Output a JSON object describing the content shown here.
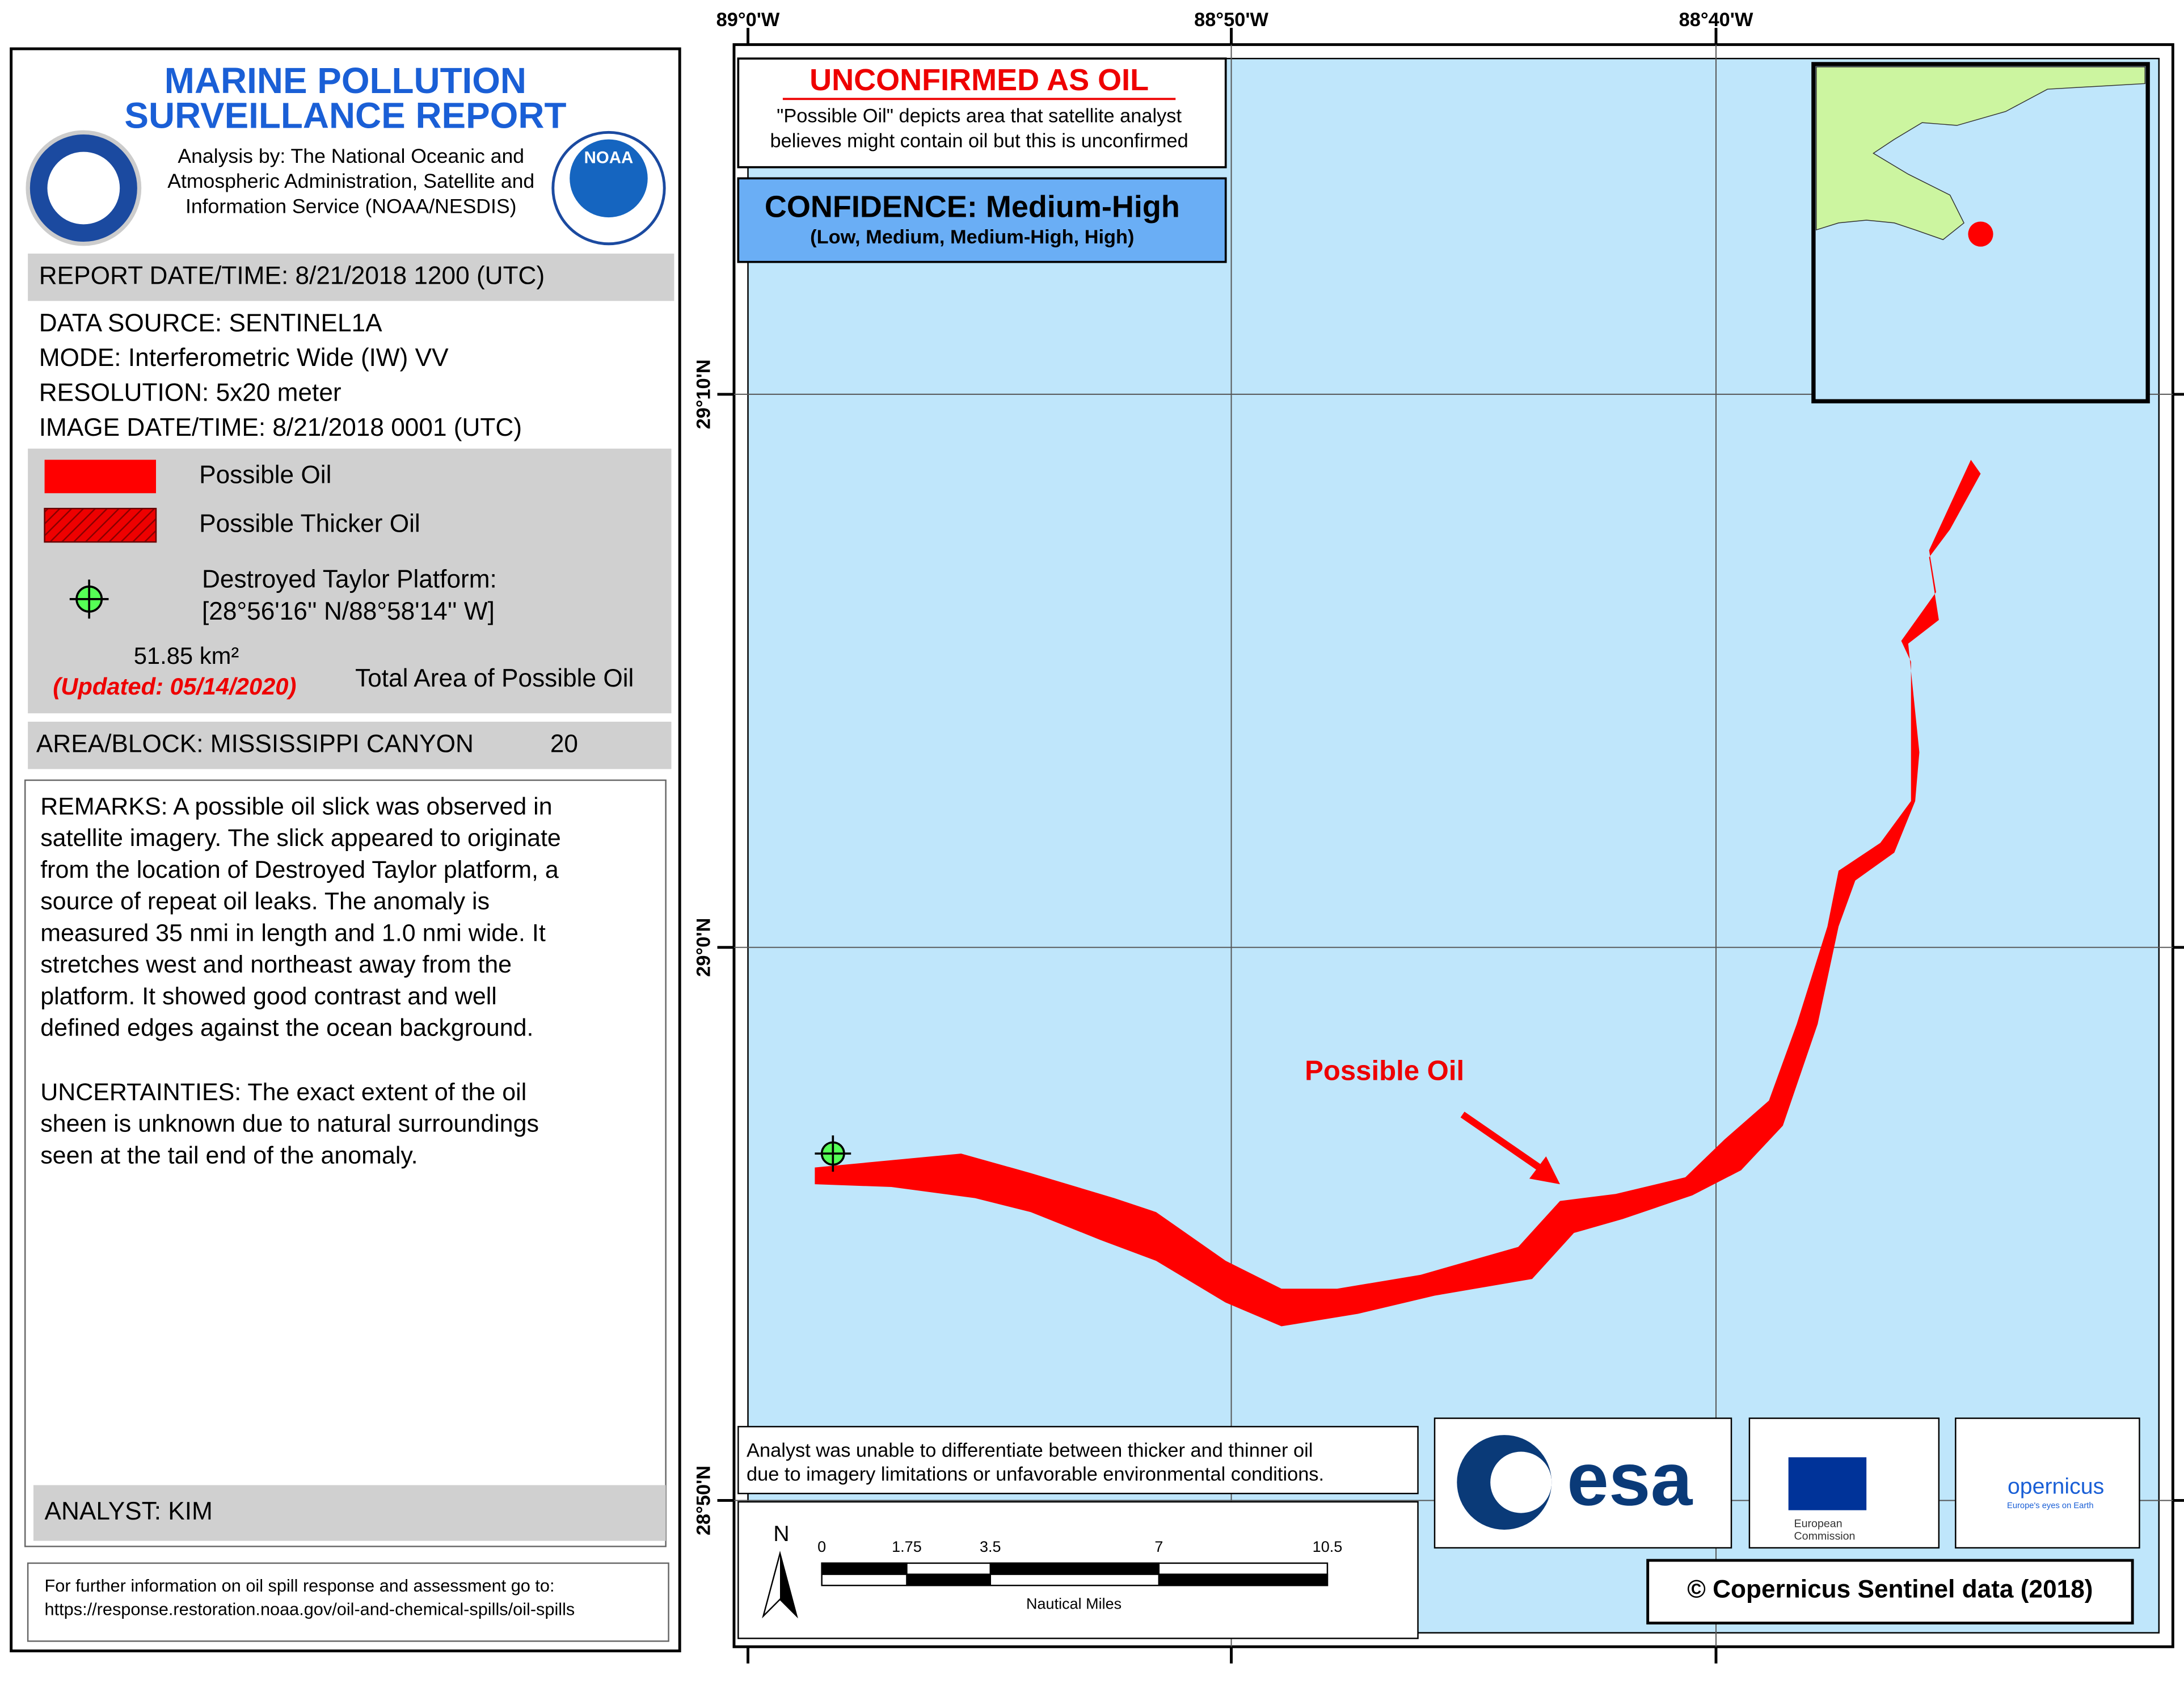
{
  "header": {
    "title": [
      "MARINE POLLUTION",
      "SURVEILLANCE REPORT"
    ],
    "analysis": [
      "Analysis by: The National Oceanic and",
      "Atmospheric Administration, Satellite and",
      "Information Service (NOAA/NESDIS)"
    ],
    "noaa_logo": "NOAA"
  },
  "report_datetime": "REPORT DATE/TIME: 8/21/2018 1200 (UTC)",
  "details": [
    "DATA SOURCE: SENTINEL1A",
    "MODE: Interferometric Wide (IW) VV",
    "RESOLUTION: 5x20 meter",
    "IMAGE DATE/TIME: 8/21/2018 0001 (UTC)"
  ],
  "legend": {
    "items": [
      "Possible Oil",
      "Possible Thicker Oil"
    ],
    "platform": [
      "Destroyed Taylor Platform:",
      "[28°56'16'' N/88°58'14'' W]"
    ],
    "area": "51.85 km²",
    "updated": "(Updated: 05/14/2020)",
    "area_label": "Total Area of Possible Oil"
  },
  "block": {
    "label": "AREA/BLOCK: MISSISSIPPI CANYON",
    "number": "20"
  },
  "remarks": [
    "REMARKS: A possible oil slick was observed in",
    "satellite imagery. The slick appeared to originate",
    "from the location of Destroyed Taylor platform, a",
    "source of repeat oil leaks. The anomaly is",
    "measured 35 nmi in length and 1.0 nmi wide.  It",
    "stretches west and northeast away from the",
    "platform. It showed good contrast and well",
    "defined edges against the ocean background."
  ],
  "uncertainties": [
    "UNCERTAINTIES: The exact extent of the oil",
    "sheen is unknown due to natural surroundings",
    "seen at the tail end of the anomaly."
  ],
  "analyst": "ANALYST: KIM",
  "footer": [
    "For further information on oil spill response and assessment go to:",
    "https://response.restoration.noaa.gov/oil-and-chemical-spills/oil-spills"
  ],
  "map": {
    "lon_labels": [
      "89°0'W",
      "88°50'W",
      "88°40'W"
    ],
    "lat_labels": [
      "29°10'N",
      "29°0'N",
      "28°50'N"
    ],
    "unconfirmed": {
      "title": "UNCONFIRMED AS OIL",
      "lines": [
        "\"Possible Oil\" depicts area that satellite analyst",
        "believes might contain oil but this is unconfirmed"
      ]
    },
    "confidence": {
      "title": "CONFIDENCE: Medium-High",
      "scale": "(Low, Medium, Medium-High, High)"
    },
    "annotation": "Possible Oil",
    "note": [
      "Analyst was unable to differentiate between thicker and thinner oil",
      "due to imagery limitations or unfavorable environmental conditions."
    ],
    "scale": {
      "north": "N",
      "ticks": [
        "0",
        "1.75",
        "3.5",
        "7",
        "10.5"
      ],
      "units": "Nautical Miles"
    },
    "logos": {
      "esa": "esa",
      "ec": [
        "European",
        "Commission"
      ],
      "copernicus": "opernicus",
      "copernicus_tagline": "Europe's eyes on Earth"
    },
    "credit": "© Copernicus Sentinel data (2018)"
  }
}
